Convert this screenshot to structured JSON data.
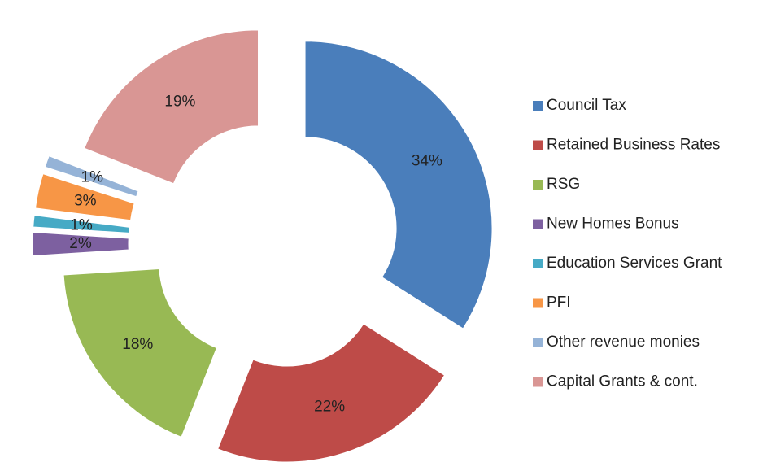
{
  "chart_data": {
    "type": "donut",
    "categories": [
      "Council Tax",
      "Retained Business Rates",
      "RSG",
      "New Homes Bonus",
      "Education Services Grant",
      "PFI",
      "Other revenue monies",
      "Capital Grants & cont."
    ],
    "values": [
      34,
      22,
      18,
      2,
      1,
      3,
      1,
      19
    ],
    "value_labels": [
      "34%",
      "22%",
      "18%",
      "2%",
      "1%",
      "3%",
      "1%",
      "19%"
    ],
    "colors": [
      "#4a7ebb",
      "#be4b48",
      "#98b954",
      "#7d60a0",
      "#46aac5",
      "#f79646",
      "#95b3d7",
      "#d99694"
    ],
    "legend": "right"
  }
}
